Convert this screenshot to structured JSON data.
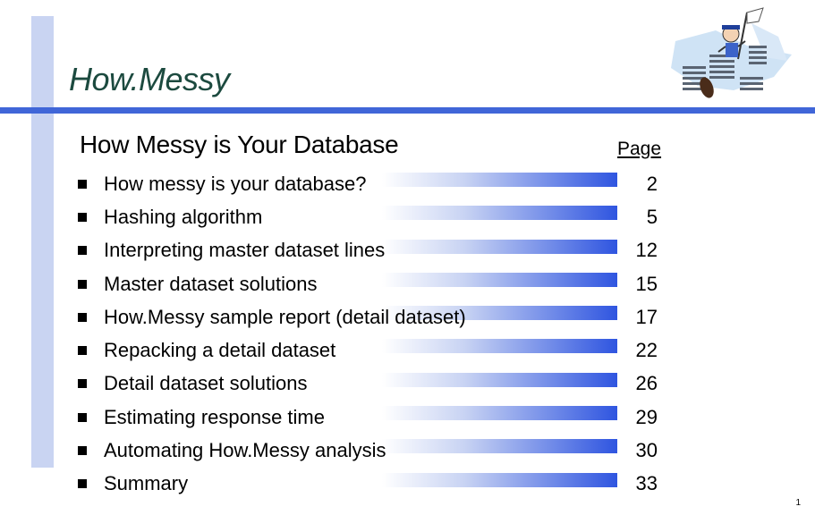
{
  "header": {
    "title": "How.Messy"
  },
  "content": {
    "subtitle": "How Messy is Your Database",
    "page_column_header": "Page",
    "items": [
      {
        "label": "How messy is your database?",
        "page": "2"
      },
      {
        "label": "Hashing algorithm",
        "page": "5"
      },
      {
        "label": "Interpreting master dataset lines",
        "page": "12"
      },
      {
        "label": "Master dataset solutions",
        "page": "15"
      },
      {
        "label": "How.Messy sample report (detail dataset)",
        "page": "17"
      },
      {
        "label": "Repacking a detail dataset",
        "page": "22"
      },
      {
        "label": "Detail dataset solutions",
        "page": "26"
      },
      {
        "label": "Estimating response time",
        "page": "29"
      },
      {
        "label": "Automating How.Messy analysis",
        "page": "30"
      },
      {
        "label": "Summary",
        "page": "33"
      }
    ]
  },
  "footer": {
    "slide_number": "1"
  },
  "colors": {
    "accent_blue": "#4066d8",
    "side_bar": "#c9d4f2",
    "title_green": "#1c4a3f",
    "bar_fade_end": "#2f55e0"
  },
  "icons": {
    "clipart": "person-in-paper-pile-with-flag-icon",
    "bullet": "square-bullet-icon"
  }
}
